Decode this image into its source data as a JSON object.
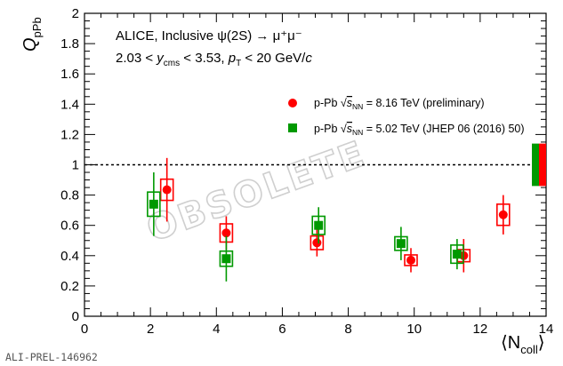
{
  "chart_data": {
    "type": "scatter",
    "ylabel": "Q",
    "ylabel_sub": "pPb",
    "xlabel": "⟨N",
    "xlabel_sub": "coll",
    "xlabel_close": "⟩",
    "xlim": [
      0,
      14
    ],
    "ylim": [
      0,
      2
    ],
    "xticks": [
      "0",
      "2",
      "4",
      "6",
      "8",
      "10",
      "12",
      "14"
    ],
    "yticks": [
      "0",
      "0.2",
      "0.4",
      "0.6",
      "0.8",
      "1",
      "1.2",
      "1.4",
      "1.6",
      "1.8",
      "2"
    ],
    "reference_line_y": 1,
    "annotation_line1": "ALICE, Inclusive ψ(2S) → μ⁺μ⁻",
    "annotation_line2": {
      "pre": "2.03 < ",
      "var1": "y",
      "var1_sub": "cms",
      "mid": " < 3.53, ",
      "var2": "p",
      "var2_sub": "T",
      "post": " < 20 GeV/",
      "var3": "c"
    },
    "watermark": "OBSOLETE",
    "series": [
      {
        "legend_pre": "p-Pb ",
        "legend_sqrt": "s",
        "legend_sub": "NN",
        "legend_post": " = 8.16 TeV (preliminary)",
        "color": "#ff0000",
        "marker": "circle",
        "points": [
          {
            "x": 2.5,
            "y": 0.835,
            "stat": 0.21,
            "syst": 0.07
          },
          {
            "x": 4.3,
            "y": 0.55,
            "stat": 0.11,
            "syst": 0.06
          },
          {
            "x": 7.05,
            "y": 0.485,
            "stat": 0.09,
            "syst": 0.045
          },
          {
            "x": 9.9,
            "y": 0.37,
            "stat": 0.08,
            "syst": 0.035
          },
          {
            "x": 11.5,
            "y": 0.4,
            "stat": 0.11,
            "syst": 0.04
          },
          {
            "x": 12.7,
            "y": 0.67,
            "stat": 0.13,
            "syst": 0.07
          }
        ],
        "global_uncertainty": 0.14
      },
      {
        "legend_pre": "p-Pb ",
        "legend_sqrt": "s",
        "legend_sub": "NN",
        "legend_post": " = 5.02 TeV (JHEP 06 (2016) 50)",
        "color": "#009900",
        "marker": "square",
        "points": [
          {
            "x": 2.1,
            "y": 0.74,
            "stat": 0.21,
            "syst": 0.08
          },
          {
            "x": 4.3,
            "y": 0.38,
            "stat": 0.15,
            "syst": 0.05
          },
          {
            "x": 7.1,
            "y": 0.6,
            "stat": 0.12,
            "syst": 0.06
          },
          {
            "x": 9.6,
            "y": 0.48,
            "stat": 0.11,
            "syst": 0.045
          },
          {
            "x": 11.3,
            "y": 0.41,
            "stat": 0.1,
            "syst": 0.06
          }
        ],
        "global_uncertainty": 0.14
      }
    ]
  },
  "footer_label": "ALI-PREL-146962"
}
